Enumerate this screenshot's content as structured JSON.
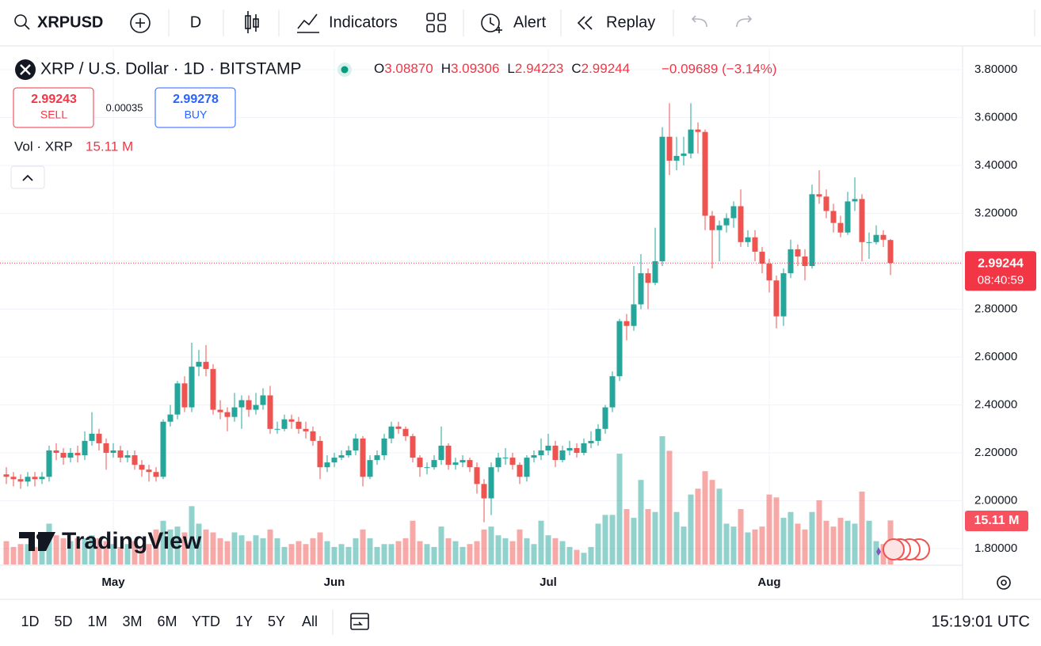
{
  "toolbar": {
    "symbol": "XRPUSD",
    "interval": "D",
    "indicators": "Indicators",
    "alert": "Alert",
    "replay": "Replay"
  },
  "legend": {
    "title": "XRP / U.S. Dollar · 1D · BITSTAMP",
    "ohlc": [
      {
        "key": "O",
        "value": "3.08870"
      },
      {
        "key": "H",
        "value": "3.09306"
      },
      {
        "key": "L",
        "value": "2.94223"
      },
      {
        "key": "C",
        "value": "2.99244"
      }
    ],
    "change": "−0.09689 (−3.14%)",
    "sell": {
      "price": "2.99243",
      "label": "SELL"
    },
    "spread": "0.00035",
    "buy": {
      "price": "2.99278",
      "label": "BUY"
    },
    "volume_name": "Vol · XRP",
    "volume_value": "15.11 M"
  },
  "countdown": "08:40:59",
  "watermark": "TradingView",
  "ranges": [
    "1D",
    "5D",
    "1M",
    "3M",
    "6M",
    "YTD",
    "1Y",
    "5Y",
    "All"
  ],
  "clock": "15:19:01 UTC",
  "chart_data": {
    "type": "candlestick",
    "categories": [
      null,
      null,
      null,
      null,
      null,
      null,
      null,
      null,
      null,
      null,
      null,
      null,
      null,
      null,
      null,
      "May",
      null,
      null,
      null,
      null,
      null,
      null,
      null,
      null,
      null,
      null,
      null,
      null,
      null,
      null,
      null,
      null,
      null,
      null,
      null,
      null,
      null,
      null,
      null,
      null,
      null,
      null,
      null,
      null,
      null,
      null,
      "Jun",
      null,
      null,
      null,
      null,
      null,
      null,
      null,
      null,
      null,
      null,
      null,
      null,
      null,
      null,
      null,
      null,
      null,
      null,
      null,
      null,
      null,
      null,
      null,
      null,
      null,
      null,
      null,
      null,
      null,
      "Jul",
      null,
      null,
      null,
      null,
      null,
      null,
      null,
      null,
      null,
      null,
      null,
      null,
      null,
      null,
      null,
      null,
      null,
      null,
      null,
      null,
      null,
      null,
      null,
      null,
      null,
      null,
      null,
      null,
      null,
      null,
      "Aug",
      null,
      null,
      null,
      null,
      null,
      null,
      null,
      null,
      null,
      null,
      null,
      null,
      null,
      null,
      null,
      null,
      null
    ],
    "open": [
      2.11,
      2.1,
      2.09,
      2.08,
      2.1,
      2.09,
      2.1,
      2.21,
      2.2,
      2.18,
      2.2,
      2.19,
      2.25,
      2.28,
      2.24,
      2.2,
      2.21,
      2.18,
      2.19,
      2.15,
      2.13,
      2.12,
      2.1,
      2.33,
      2.36,
      2.49,
      2.39,
      2.56,
      2.58,
      2.55,
      2.38,
      2.37,
      2.35,
      2.39,
      2.42,
      2.38,
      2.4,
      2.44,
      2.3,
      2.3,
      2.34,
      2.33,
      2.3,
      2.29,
      2.25,
      2.14,
      2.16,
      2.18,
      2.19,
      2.21,
      2.26,
      2.1,
      2.17,
      2.19,
      2.26,
      2.31,
      2.3,
      2.27,
      2.18,
      2.14,
      2.14,
      2.17,
      2.23,
      2.15,
      2.16,
      2.17,
      2.14,
      2.07,
      2.01,
      2.14,
      2.18,
      2.18,
      2.15,
      2.1,
      2.18,
      2.19,
      2.21,
      2.23,
      2.17,
      2.21,
      2.22,
      2.2,
      2.24,
      2.25,
      2.3,
      2.39,
      2.52,
      2.75,
      2.73,
      2.82,
      2.95,
      2.91,
      3.0,
      3.52,
      3.42,
      3.44,
      3.45,
      3.55,
      3.54,
      3.19,
      3.13,
      3.15,
      3.18,
      3.23,
      3.08,
      3.1,
      3.04,
      2.99,
      2.92,
      2.77,
      2.95,
      3.05,
      3.02,
      2.98,
      3.28,
      3.27,
      3.21,
      3.16,
      3.12,
      3.25,
      3.26,
      3.08,
      3.08,
      3.11,
      3.0887
    ],
    "high": [
      2.14,
      2.12,
      2.11,
      2.12,
      2.12,
      2.12,
      2.23,
      2.24,
      2.22,
      2.22,
      2.23,
      2.29,
      2.37,
      2.3,
      2.26,
      2.24,
      2.23,
      2.21,
      2.21,
      2.17,
      2.15,
      2.14,
      2.34,
      2.4,
      2.5,
      2.52,
      2.66,
      2.63,
      2.65,
      2.57,
      2.42,
      2.39,
      2.45,
      2.44,
      2.44,
      2.45,
      2.47,
      2.48,
      2.33,
      2.36,
      2.36,
      2.35,
      2.33,
      2.31,
      2.27,
      2.19,
      2.2,
      2.21,
      2.23,
      2.28,
      2.27,
      2.19,
      2.21,
      2.28,
      2.33,
      2.33,
      2.31,
      2.28,
      2.19,
      2.16,
      2.19,
      2.31,
      2.24,
      2.18,
      2.19,
      2.18,
      2.16,
      2.09,
      2.16,
      2.2,
      2.22,
      2.2,
      2.16,
      2.19,
      2.21,
      2.26,
      2.28,
      2.25,
      2.23,
      2.25,
      2.24,
      2.26,
      2.29,
      2.32,
      2.4,
      2.54,
      2.76,
      2.78,
      2.98,
      3.03,
      2.97,
      3.14,
      3.56,
      3.66,
      3.52,
      3.52,
      3.66,
      3.58,
      3.55,
      3.21,
      3.17,
      3.2,
      3.25,
      3.3,
      3.13,
      3.13,
      3.06,
      3.01,
      2.94,
      2.97,
      3.09,
      3.07,
      3.05,
      3.32,
      3.38,
      3.3,
      3.24,
      3.19,
      3.29,
      3.35,
      3.28,
      3.12,
      3.15,
      3.13,
      3.09306
    ],
    "low": [
      2.07,
      2.06,
      2.05,
      2.06,
      2.06,
      2.07,
      2.08,
      2.17,
      2.15,
      2.16,
      2.16,
      2.17,
      2.23,
      2.21,
      2.13,
      2.18,
      2.16,
      2.16,
      2.13,
      2.1,
      2.08,
      2.08,
      2.09,
      2.31,
      2.34,
      2.37,
      2.37,
      2.52,
      2.52,
      2.36,
      2.34,
      2.29,
      2.33,
      2.3,
      2.35,
      2.36,
      2.38,
      2.28,
      2.28,
      2.29,
      2.3,
      2.28,
      2.26,
      2.23,
      2.09,
      2.12,
      2.14,
      2.17,
      2.18,
      2.19,
      2.06,
      2.09,
      2.15,
      2.17,
      2.24,
      2.28,
      2.25,
      2.16,
      2.1,
      2.11,
      2.13,
      2.15,
      2.13,
      2.13,
      2.14,
      2.12,
      2.03,
      1.91,
      1.94,
      2.12,
      2.15,
      2.13,
      2.07,
      2.08,
      2.16,
      2.17,
      2.19,
      2.14,
      2.16,
      2.19,
      2.18,
      2.19,
      2.22,
      2.23,
      2.28,
      2.37,
      2.5,
      2.67,
      2.71,
      2.8,
      2.8,
      2.9,
      2.98,
      3.36,
      3.38,
      3.4,
      3.43,
      3.45,
      3.13,
      2.97,
      3.0,
      3.12,
      3.14,
      3.06,
      3.06,
      3.0,
      2.95,
      2.87,
      2.72,
      2.73,
      2.93,
      2.98,
      2.92,
      2.97,
      3.24,
      3.18,
      3.12,
      3.1,
      3.11,
      3.21,
      3.0,
      3.01,
      3.07,
      3.06,
      2.94223
    ],
    "close": [
      2.1,
      2.09,
      2.08,
      2.1,
      2.09,
      2.1,
      2.21,
      2.2,
      2.18,
      2.2,
      2.19,
      2.25,
      2.28,
      2.24,
      2.2,
      2.21,
      2.18,
      2.19,
      2.15,
      2.13,
      2.12,
      2.1,
      2.33,
      2.36,
      2.49,
      2.39,
      2.56,
      2.58,
      2.55,
      2.38,
      2.37,
      2.35,
      2.39,
      2.42,
      2.38,
      2.4,
      2.44,
      2.3,
      2.3,
      2.34,
      2.33,
      2.3,
      2.29,
      2.25,
      2.14,
      2.16,
      2.18,
      2.19,
      2.21,
      2.26,
      2.1,
      2.17,
      2.19,
      2.26,
      2.31,
      2.3,
      2.27,
      2.18,
      2.14,
      2.14,
      2.17,
      2.23,
      2.15,
      2.16,
      2.17,
      2.14,
      2.07,
      2.01,
      2.14,
      2.18,
      2.18,
      2.15,
      2.1,
      2.18,
      2.19,
      2.21,
      2.23,
      2.17,
      2.21,
      2.22,
      2.2,
      2.24,
      2.25,
      2.3,
      2.39,
      2.52,
      2.75,
      2.73,
      2.82,
      2.95,
      2.91,
      3.0,
      3.52,
      3.42,
      3.44,
      3.45,
      3.55,
      3.54,
      3.19,
      3.13,
      3.15,
      3.18,
      3.23,
      3.08,
      3.1,
      3.04,
      2.99,
      2.92,
      2.77,
      2.95,
      3.05,
      3.02,
      2.98,
      3.28,
      3.27,
      3.21,
      3.16,
      3.12,
      3.25,
      3.26,
      3.08,
      3.08,
      3.11,
      3.09,
      2.99244
    ],
    "volume": [
      8,
      6,
      7,
      7,
      6,
      9,
      14,
      10,
      9,
      8,
      9,
      9,
      10,
      9,
      8,
      7,
      6,
      7,
      8,
      6,
      7,
      12,
      15,
      12,
      13,
      11,
      20,
      14,
      12,
      11,
      9,
      8,
      11,
      10,
      8,
      10,
      9,
      12,
      9,
      6,
      7,
      8,
      7,
      9,
      11,
      8,
      6,
      7,
      6,
      9,
      12,
      9,
      6,
      7,
      7,
      8,
      9,
      15,
      8,
      7,
      6,
      13,
      9,
      8,
      6,
      7,
      8,
      12,
      13,
      10,
      9,
      8,
      12,
      9,
      7,
      15,
      10,
      9,
      8,
      6,
      5,
      4,
      6,
      14,
      17,
      17,
      38,
      19,
      16,
      29,
      19,
      18,
      44,
      39,
      18,
      13,
      24,
      26,
      32,
      29,
      26,
      14,
      13,
      19,
      11,
      12,
      13,
      24,
      23,
      16,
      18,
      14,
      12,
      18,
      22,
      15,
      13,
      16,
      15,
      14,
      25,
      15,
      8,
      7,
      15.11
    ],
    "ylim": [
      1.734,
      3.886
    ],
    "yticks": [
      {
        "value": 1.8,
        "label": "1.80000"
      },
      {
        "value": 2.0,
        "label": "2.00000"
      },
      {
        "value": 2.2,
        "label": "2.20000"
      },
      {
        "value": 2.4,
        "label": "2.40000"
      },
      {
        "value": 2.6,
        "label": "2.60000"
      },
      {
        "value": 2.8,
        "label": "2.80000"
      },
      {
        "value": 3.0,
        "label": "3.00000"
      },
      {
        "value": 3.2,
        "label": "3.20000"
      },
      {
        "value": 3.4,
        "label": "3.40000"
      },
      {
        "value": 3.6,
        "label": "3.60000"
      },
      {
        "value": 3.8,
        "label": "3.80000"
      }
    ],
    "grid": true,
    "up_color": "#26a69a",
    "down_color": "#ef5350"
  }
}
